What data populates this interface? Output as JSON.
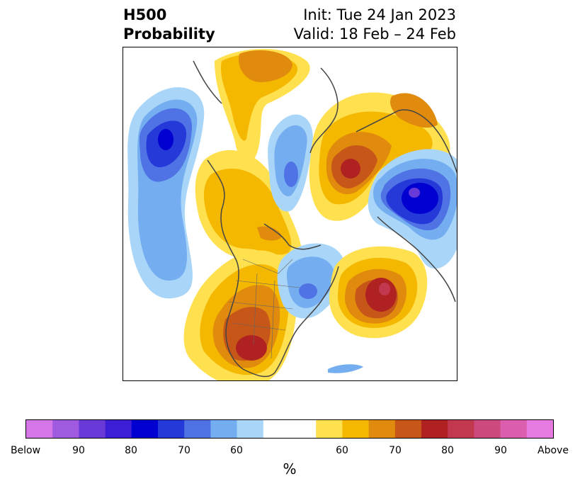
{
  "title": {
    "left_line1": "H500",
    "left_line2": "Probability",
    "right_line1": "Init: Tue 24 Jan 2023",
    "right_line2": "Valid: 18 Feb – 24 Feb"
  },
  "colorbar": {
    "unit_label": "%",
    "colors": [
      "#d576e8",
      "#9f5ae0",
      "#6a3ad8",
      "#3b1ed6",
      "#0000d0",
      "#2539d9",
      "#4f72e4",
      "#74adf0",
      "#a9d6f8",
      "#ffffff",
      "#ffffff",
      "#ffe04f",
      "#f5b800",
      "#e08a0e",
      "#c75619",
      "#b02222",
      "#c2384e",
      "#cc4a7d",
      "#db5fae",
      "#e67ae0"
    ],
    "tick_labels": [
      "Below",
      "90",
      "80",
      "70",
      "60",
      "60",
      "70",
      "80",
      "90",
      "Above"
    ]
  },
  "colors": {
    "below_strong": "#0000d0",
    "below_moderate": "#4f72e4",
    "below_weak": "#a9d6f8",
    "above_weak": "#ffe04f",
    "above_moderate": "#e08a0e",
    "above_strong": "#b02222",
    "coastline": "#444444"
  }
}
